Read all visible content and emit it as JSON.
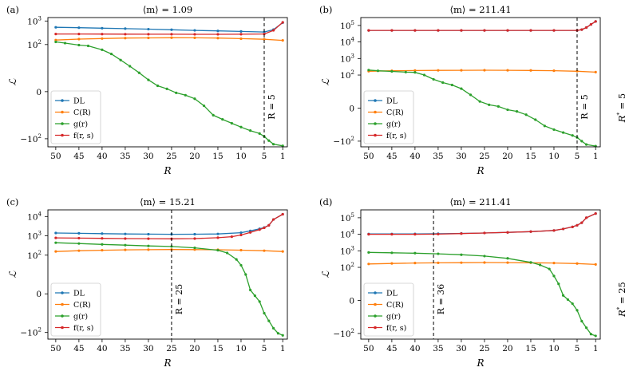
{
  "figure": {
    "row_labels": [
      {
        "main": "R",
        "sup": "*",
        "rest": " = 5"
      },
      {
        "main": "R",
        "sup": "*",
        "rest": " = 25"
      }
    ]
  },
  "chart_data": [
    {
      "type": "line",
      "panel_label": "(a)",
      "title": "⟨m⟩ = 1.09",
      "xlabel": "R",
      "ylabel": "ℒ",
      "x_inverted": true,
      "xlim": [
        51.7,
        0
      ],
      "xticks": [
        50,
        45,
        40,
        35,
        30,
        25,
        20,
        15,
        10,
        5,
        1
      ],
      "y_scale": "symlog",
      "ylim": [
        -220,
        1400
      ],
      "yticks": [
        {
          "value": -100,
          "base": "−10",
          "exp": "2"
        },
        {
          "value": 0,
          "base": "0",
          "exp": ""
        },
        {
          "value": 100,
          "base": "10",
          "exp": "2"
        },
        {
          "value": 1000,
          "base": "10",
          "exp": "3"
        }
      ],
      "vline": {
        "x": 5,
        "label": "R = 5"
      },
      "legend": {
        "position": "lower-left"
      },
      "series": [
        {
          "name": "DL",
          "color": "#1f77b4",
          "x": [
            50,
            45,
            40,
            35,
            30,
            25,
            20,
            15,
            10,
            5,
            3,
            1
          ],
          "y": [
            540,
            520,
            495,
            475,
            450,
            425,
            400,
            380,
            360,
            340,
            430,
            850
          ]
        },
        {
          "name": "C(R)",
          "color": "#ff7f0e",
          "x": [
            50,
            45,
            40,
            35,
            30,
            25,
            20,
            15,
            10,
            5,
            1
          ],
          "y": [
            155,
            170,
            180,
            188,
            192,
            195,
            193,
            188,
            178,
            168,
            150
          ]
        },
        {
          "name": "g(r)",
          "color": "#2ca02c",
          "x": [
            50,
            48,
            45,
            43,
            40,
            38,
            36,
            34,
            32,
            30,
            28,
            26,
            24,
            22,
            20,
            18,
            16,
            14,
            12,
            10,
            8,
            6,
            5,
            4,
            3,
            1
          ],
          "y": [
            130,
            115,
            95,
            88,
            60,
            40,
            22,
            12,
            8,
            5,
            2.5,
            1.2,
            -0.5,
            -1.5,
            -3,
            -6,
            -10,
            -15,
            -22,
            -32,
            -45,
            -60,
            -80,
            -120,
            -170,
            -200
          ]
        },
        {
          "name": "f(r, s)",
          "color": "#d62728",
          "x": [
            50,
            45,
            40,
            35,
            30,
            25,
            20,
            15,
            10,
            5,
            3,
            1
          ],
          "y": [
            280,
            280,
            278,
            276,
            275,
            274,
            273,
            273,
            274,
            280,
            400,
            880
          ]
        }
      ]
    },
    {
      "type": "line",
      "panel_label": "(b)",
      "title": "⟨m⟩ = 211.41",
      "xlabel": "R",
      "ylabel": "ℒ",
      "x_inverted": true,
      "xlim": [
        51.7,
        0
      ],
      "xticks": [
        50,
        45,
        40,
        35,
        30,
        25,
        20,
        15,
        10,
        5,
        1
      ],
      "y_scale": "symlog",
      "ylim": [
        -220,
        300000
      ],
      "yticks": [
        {
          "value": -100,
          "base": "−10",
          "exp": "2"
        },
        {
          "value": 0,
          "base": "0",
          "exp": ""
        },
        {
          "value": 100,
          "base": "10",
          "exp": "2"
        },
        {
          "value": 1000,
          "base": "10",
          "exp": "3"
        },
        {
          "value": 10000,
          "base": "10",
          "exp": "4"
        },
        {
          "value": 100000,
          "base": "10",
          "exp": "5"
        }
      ],
      "vline": {
        "x": 5,
        "label": "R = 5"
      },
      "legend": {
        "position": "lower-left"
      },
      "series": [
        {
          "name": "DL",
          "color": "#1f77b4",
          "x": [
            50,
            45,
            40,
            35,
            30,
            25,
            20,
            15,
            10,
            5,
            4,
            3,
            2,
            1
          ],
          "y": [
            50000,
            50000,
            50000,
            50000,
            50000,
            50000,
            50000,
            50000,
            50000,
            50000,
            56000,
            75000,
            115000,
            175000
          ]
        },
        {
          "name": "C(R)",
          "color": "#ff7f0e",
          "x": [
            50,
            45,
            40,
            35,
            30,
            25,
            20,
            15,
            10,
            5,
            1
          ],
          "y": [
            170,
            180,
            188,
            192,
            194,
            195,
            194,
            190,
            182,
            170,
            150
          ]
        },
        {
          "name": "g(r)",
          "color": "#2ca02c",
          "x": [
            50,
            48,
            45,
            42,
            40,
            38,
            36,
            34,
            32,
            30,
            28,
            26,
            24,
            22,
            20,
            18,
            16,
            14,
            12,
            10,
            8,
            6,
            5,
            4,
            3,
            1
          ],
          "y": [
            200,
            180,
            165,
            150,
            145,
            100,
            55,
            35,
            25,
            15,
            8,
            4,
            2,
            1,
            -1,
            -2,
            -4,
            -7,
            -12,
            -20,
            -30,
            -45,
            -60,
            -100,
            -160,
            -200
          ]
        },
        {
          "name": "f(r, s)",
          "color": "#d62728",
          "x": [
            50,
            45,
            40,
            35,
            30,
            25,
            20,
            15,
            10,
            5,
            4,
            3,
            2,
            1
          ],
          "y": [
            50000,
            50000,
            50000,
            50000,
            50000,
            50000,
            50000,
            50000,
            50000,
            50000,
            56000,
            75000,
            115000,
            175000
          ]
        }
      ]
    },
    {
      "type": "line",
      "panel_label": "(c)",
      "title": "⟨m⟩ = 15.21",
      "xlabel": "R",
      "ylabel": "ℒ",
      "x_inverted": true,
      "xlim": [
        51.7,
        0
      ],
      "xticks": [
        50,
        45,
        40,
        35,
        30,
        25,
        20,
        15,
        10,
        5,
        1
      ],
      "y_scale": "symlog",
      "ylim": [
        -220,
        22000
      ],
      "yticks": [
        {
          "value": -100,
          "base": "−10",
          "exp": "2"
        },
        {
          "value": 0,
          "base": "0",
          "exp": ""
        },
        {
          "value": 100,
          "base": "10",
          "exp": "2"
        },
        {
          "value": 1000,
          "base": "10",
          "exp": "3"
        },
        {
          "value": 10000,
          "base": "10",
          "exp": "4"
        }
      ],
      "vline": {
        "x": 25,
        "label": "R = 25"
      },
      "legend": {
        "position": "lower-left"
      },
      "series": [
        {
          "name": "DL",
          "color": "#1f77b4",
          "x": [
            50,
            45,
            40,
            35,
            30,
            25,
            20,
            15,
            10,
            8,
            6,
            5,
            4,
            3,
            1
          ],
          "y": [
            1400,
            1350,
            1300,
            1250,
            1220,
            1200,
            1210,
            1250,
            1450,
            1800,
            2300,
            2700,
            3500,
            7000,
            13000
          ]
        },
        {
          "name": "C(R)",
          "color": "#ff7f0e",
          "x": [
            50,
            45,
            40,
            35,
            30,
            25,
            20,
            15,
            10,
            5,
            1
          ],
          "y": [
            155,
            170,
            180,
            188,
            192,
            195,
            194,
            190,
            182,
            170,
            155
          ]
        },
        {
          "name": "g(r)",
          "color": "#2ca02c",
          "x": [
            50,
            45,
            40,
            35,
            30,
            25,
            20,
            15,
            13,
            11,
            10,
            9,
            8,
            7,
            6,
            5,
            4,
            3,
            2,
            1
          ],
          "y": [
            440,
            400,
            360,
            330,
            300,
            280,
            240,
            180,
            130,
            60,
            30,
            10,
            2,
            -1,
            -4,
            -10,
            -25,
            -60,
            -110,
            -140
          ]
        },
        {
          "name": "f(r, s)",
          "color": "#d62728",
          "x": [
            50,
            45,
            40,
            35,
            30,
            25,
            20,
            15,
            12,
            10,
            8,
            6,
            5,
            4,
            3,
            1
          ],
          "y": [
            780,
            760,
            740,
            720,
            710,
            700,
            720,
            800,
            900,
            1100,
            1500,
            2100,
            2600,
            3500,
            7000,
            13000
          ]
        }
      ]
    },
    {
      "type": "line",
      "panel_label": "(d)",
      "title": "⟨m⟩ = 211.41",
      "xlabel": "R",
      "ylabel": "ℒ",
      "x_inverted": true,
      "xlim": [
        51.7,
        0
      ],
      "xticks": [
        50,
        45,
        40,
        35,
        30,
        25,
        20,
        15,
        10,
        5,
        1
      ],
      "y_scale": "symlog",
      "ylim": [
        -220,
        300000
      ],
      "yticks": [
        {
          "value": -100,
          "base": "−10",
          "exp": "2"
        },
        {
          "value": 0,
          "base": "0",
          "exp": ""
        },
        {
          "value": 100,
          "base": "10",
          "exp": "2"
        },
        {
          "value": 1000,
          "base": "10",
          "exp": "3"
        },
        {
          "value": 10000,
          "base": "10",
          "exp": "4"
        },
        {
          "value": 100000,
          "base": "10",
          "exp": "5"
        }
      ],
      "vline": {
        "x": 36,
        "label": "R = 36"
      },
      "legend": {
        "position": "lower-left"
      },
      "series": [
        {
          "name": "DL",
          "color": "#1f77b4",
          "x": [
            50,
            45,
            40,
            35,
            30,
            25,
            20,
            15,
            10,
            8,
            6,
            5,
            4,
            3,
            1
          ],
          "y": [
            10500,
            10500,
            10600,
            10800,
            11300,
            12000,
            13000,
            14500,
            17000,
            21000,
            28000,
            35000,
            50000,
            100000,
            180000
          ]
        },
        {
          "name": "C(R)",
          "color": "#ff7f0e",
          "x": [
            50,
            45,
            40,
            35,
            30,
            25,
            20,
            15,
            10,
            5,
            1
          ],
          "y": [
            160,
            172,
            182,
            188,
            192,
            195,
            194,
            190,
            182,
            170,
            150
          ]
        },
        {
          "name": "g(r)",
          "color": "#2ca02c",
          "x": [
            50,
            45,
            40,
            35,
            30,
            25,
            20,
            15,
            13,
            11,
            10,
            9,
            8,
            7,
            6,
            5,
            4,
            3,
            2,
            1
          ],
          "y": [
            800,
            760,
            720,
            660,
            580,
            480,
            350,
            200,
            140,
            80,
            30,
            10,
            3,
            0.5,
            -2,
            -6,
            -18,
            -45,
            -110,
            -140
          ]
        },
        {
          "name": "f(r, s)",
          "color": "#d62728",
          "x": [
            50,
            45,
            40,
            35,
            30,
            25,
            20,
            15,
            10,
            8,
            6,
            5,
            4,
            3,
            1
          ],
          "y": [
            10000,
            10000,
            10000,
            10200,
            11000,
            12000,
            13000,
            14500,
            17000,
            21000,
            28000,
            35000,
            50000,
            100000,
            180000
          ]
        }
      ]
    }
  ]
}
